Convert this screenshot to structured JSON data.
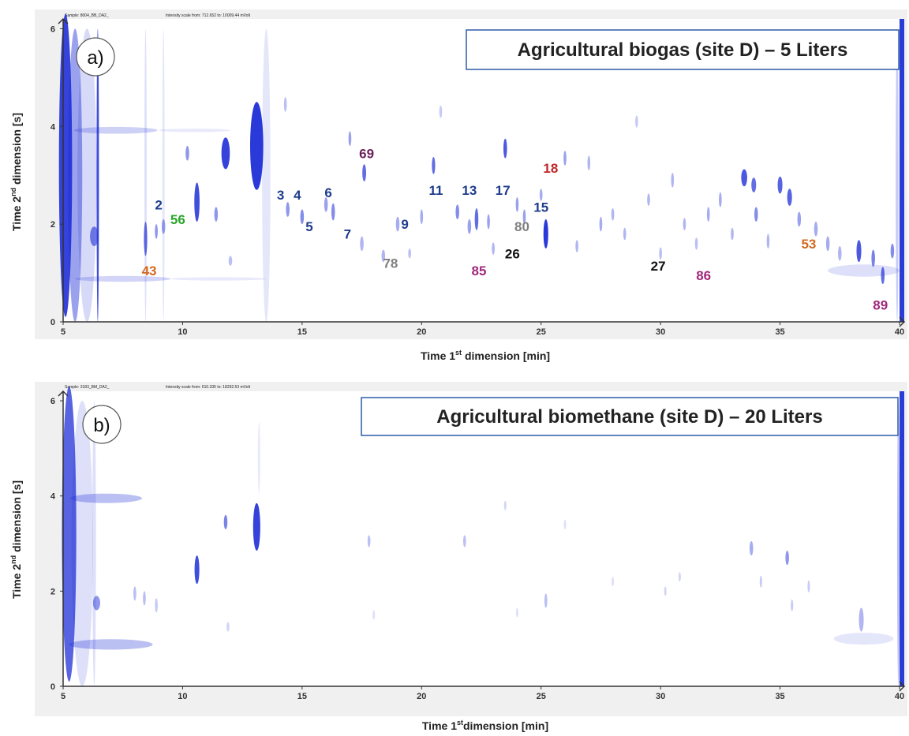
{
  "chart_data": [
    {
      "type": "scatter",
      "panel_label": "a)",
      "title": "Agricultural biogas (site D) – 5 Liters",
      "header": {
        "sample": "Sample: 8004_BB_DA2_",
        "intensity": "Intensity scale from: 712.652 to: 10009.44 mVolt"
      },
      "xlabel_parts": {
        "pre": "Time 1",
        "sup": "st",
        "post": " dimension [min]"
      },
      "ylabel_parts": {
        "pre": "Time 2",
        "sup": "nd",
        "post": " dimension [s]"
      },
      "xlim": [
        5,
        40
      ],
      "ylim": [
        0,
        6.2
      ],
      "xticks": [
        "5",
        "10",
        "15",
        "20",
        "25",
        "30",
        "35",
        "40"
      ],
      "yticks": [
        "0",
        "2",
        "4",
        "6"
      ],
      "grid": false,
      "colors": {
        "peak": "#1f2fd6",
        "frame": "#1f3c9c"
      },
      "annotations": [
        {
          "text": "2",
          "x": 9.0,
          "y": 2.4,
          "color": "#1f3c8c"
        },
        {
          "text": "56",
          "x": 9.8,
          "y": 2.1,
          "color": "#2aa52a"
        },
        {
          "text": "43",
          "x": 8.6,
          "y": 1.05,
          "color": "#d2691e"
        },
        {
          "text": "3",
          "x": 14.1,
          "y": 2.6,
          "color": "#1f3c8c"
        },
        {
          "text": "4",
          "x": 14.8,
          "y": 2.6,
          "color": "#1f3c8c"
        },
        {
          "text": "6",
          "x": 16.1,
          "y": 2.65,
          "color": "#1f3c8c"
        },
        {
          "text": "5",
          "x": 15.3,
          "y": 1.95,
          "color": "#1f3c8c"
        },
        {
          "text": "7",
          "x": 16.9,
          "y": 1.8,
          "color": "#1f3c8c"
        },
        {
          "text": "69",
          "x": 17.7,
          "y": 3.45,
          "color": "#6b1f5a"
        },
        {
          "text": "78",
          "x": 18.7,
          "y": 1.2,
          "color": "#7f7f7f"
        },
        {
          "text": "9",
          "x": 19.3,
          "y": 2.0,
          "color": "#1f3c8c"
        },
        {
          "text": "11",
          "x": 20.6,
          "y": 2.7,
          "color": "#1f3c8c"
        },
        {
          "text": "13",
          "x": 22.0,
          "y": 2.7,
          "color": "#1f3c8c"
        },
        {
          "text": "85",
          "x": 22.4,
          "y": 1.05,
          "color": "#a0287d"
        },
        {
          "text": "17",
          "x": 23.4,
          "y": 2.7,
          "color": "#1f3c8c"
        },
        {
          "text": "80",
          "x": 24.2,
          "y": 1.95,
          "color": "#7f7f7f"
        },
        {
          "text": "26",
          "x": 23.8,
          "y": 1.4,
          "color": "#111111"
        },
        {
          "text": "15",
          "x": 25.0,
          "y": 2.35,
          "color": "#1f3c8c"
        },
        {
          "text": "18",
          "x": 25.4,
          "y": 3.15,
          "color": "#c0262a"
        },
        {
          "text": "27",
          "x": 29.9,
          "y": 1.15,
          "color": "#111111"
        },
        {
          "text": "86",
          "x": 31.8,
          "y": 0.95,
          "color": "#a0287d"
        },
        {
          "text": "53",
          "x": 36.2,
          "y": 1.6,
          "color": "#d2691e"
        },
        {
          "text": "89",
          "x": 39.2,
          "y": 0.35,
          "color": "#a0287d"
        }
      ],
      "peaks": [
        {
          "x": 5.1,
          "y": 3.2,
          "w": 0.55,
          "h": 6.2,
          "o": 0.9
        },
        {
          "x": 5.5,
          "y": 3.0,
          "w": 0.6,
          "h": 6.0,
          "o": 0.45
        },
        {
          "x": 6.0,
          "y": 3.0,
          "w": 0.8,
          "h": 6.0,
          "o": 0.18
        },
        {
          "x": 6.45,
          "y": 3.0,
          "w": 0.08,
          "h": 6.0,
          "o": 0.85
        },
        {
          "x": 7.2,
          "y": 3.92,
          "w": 3.5,
          "h": 0.14,
          "o": 0.22
        },
        {
          "x": 10.5,
          "y": 3.92,
          "w": 3.0,
          "h": 0.07,
          "o": 0.1
        },
        {
          "x": 7.5,
          "y": 0.88,
          "w": 4.0,
          "h": 0.12,
          "o": 0.2
        },
        {
          "x": 11.5,
          "y": 0.88,
          "w": 4.0,
          "h": 0.07,
          "o": 0.1
        },
        {
          "x": 6.3,
          "y": 1.75,
          "w": 0.35,
          "h": 0.4,
          "o": 0.6
        },
        {
          "x": 8.45,
          "y": 1.7,
          "w": 0.14,
          "h": 0.7,
          "o": 0.7
        },
        {
          "x": 8.45,
          "y": 3.0,
          "w": 0.08,
          "h": 6.0,
          "o": 0.15
        },
        {
          "x": 8.9,
          "y": 1.85,
          "w": 0.12,
          "h": 0.3,
          "o": 0.5
        },
        {
          "x": 9.2,
          "y": 3.0,
          "w": 0.08,
          "h": 6.0,
          "o": 0.12
        },
        {
          "x": 9.2,
          "y": 1.95,
          "w": 0.15,
          "h": 0.3,
          "o": 0.45
        },
        {
          "x": 10.2,
          "y": 3.45,
          "w": 0.15,
          "h": 0.3,
          "o": 0.5
        },
        {
          "x": 10.6,
          "y": 2.45,
          "w": 0.22,
          "h": 0.8,
          "o": 0.85
        },
        {
          "x": 11.4,
          "y": 2.2,
          "w": 0.15,
          "h": 0.3,
          "o": 0.5
        },
        {
          "x": 11.8,
          "y": 3.45,
          "w": 0.35,
          "h": 0.65,
          "o": 0.9
        },
        {
          "x": 12.0,
          "y": 1.25,
          "w": 0.15,
          "h": 0.2,
          "o": 0.3
        },
        {
          "x": 13.1,
          "y": 3.6,
          "w": 0.55,
          "h": 1.8,
          "o": 0.95
        },
        {
          "x": 13.5,
          "y": 3.0,
          "w": 0.35,
          "h": 6.0,
          "o": 0.12
        },
        {
          "x": 14.3,
          "y": 4.45,
          "w": 0.12,
          "h": 0.3,
          "o": 0.3
        },
        {
          "x": 14.4,
          "y": 2.3,
          "w": 0.15,
          "h": 0.3,
          "o": 0.5
        },
        {
          "x": 15.0,
          "y": 2.15,
          "w": 0.15,
          "h": 0.3,
          "o": 0.55
        },
        {
          "x": 16.0,
          "y": 2.4,
          "w": 0.15,
          "h": 0.3,
          "o": 0.45
        },
        {
          "x": 16.3,
          "y": 2.25,
          "w": 0.15,
          "h": 0.35,
          "o": 0.55
        },
        {
          "x": 17.0,
          "y": 3.75,
          "w": 0.12,
          "h": 0.3,
          "o": 0.45
        },
        {
          "x": 17.6,
          "y": 3.05,
          "w": 0.16,
          "h": 0.35,
          "o": 0.7
        },
        {
          "x": 17.5,
          "y": 1.6,
          "w": 0.15,
          "h": 0.3,
          "o": 0.35
        },
        {
          "x": 18.4,
          "y": 1.35,
          "w": 0.15,
          "h": 0.25,
          "o": 0.35
        },
        {
          "x": 19.0,
          "y": 2.0,
          "w": 0.15,
          "h": 0.3,
          "o": 0.4
        },
        {
          "x": 19.5,
          "y": 1.4,
          "w": 0.12,
          "h": 0.2,
          "o": 0.3
        },
        {
          "x": 20.0,
          "y": 2.15,
          "w": 0.12,
          "h": 0.3,
          "o": 0.4
        },
        {
          "x": 20.5,
          "y": 3.2,
          "w": 0.14,
          "h": 0.35,
          "o": 0.7
        },
        {
          "x": 20.8,
          "y": 4.3,
          "w": 0.12,
          "h": 0.25,
          "o": 0.25
        },
        {
          "x": 21.5,
          "y": 2.25,
          "w": 0.15,
          "h": 0.3,
          "o": 0.55
        },
        {
          "x": 22.0,
          "y": 1.95,
          "w": 0.15,
          "h": 0.3,
          "o": 0.45
        },
        {
          "x": 22.3,
          "y": 2.1,
          "w": 0.15,
          "h": 0.45,
          "o": 0.7
        },
        {
          "x": 22.8,
          "y": 2.05,
          "w": 0.12,
          "h": 0.3,
          "o": 0.45
        },
        {
          "x": 23.0,
          "y": 1.5,
          "w": 0.12,
          "h": 0.25,
          "o": 0.35
        },
        {
          "x": 23.5,
          "y": 3.55,
          "w": 0.15,
          "h": 0.4,
          "o": 0.8
        },
        {
          "x": 24.0,
          "y": 2.4,
          "w": 0.12,
          "h": 0.3,
          "o": 0.45
        },
        {
          "x": 24.3,
          "y": 2.15,
          "w": 0.12,
          "h": 0.3,
          "o": 0.45
        },
        {
          "x": 25.2,
          "y": 1.8,
          "w": 0.2,
          "h": 0.6,
          "o": 0.95
        },
        {
          "x": 25.0,
          "y": 2.6,
          "w": 0.12,
          "h": 0.25,
          "o": 0.4
        },
        {
          "x": 26.0,
          "y": 3.35,
          "w": 0.12,
          "h": 0.3,
          "o": 0.45
        },
        {
          "x": 26.5,
          "y": 1.55,
          "w": 0.12,
          "h": 0.25,
          "o": 0.35
        },
        {
          "x": 27.0,
          "y": 3.25,
          "w": 0.12,
          "h": 0.3,
          "o": 0.35
        },
        {
          "x": 27.5,
          "y": 2.0,
          "w": 0.12,
          "h": 0.3,
          "o": 0.4
        },
        {
          "x": 28.0,
          "y": 2.2,
          "w": 0.12,
          "h": 0.25,
          "o": 0.35
        },
        {
          "x": 28.5,
          "y": 1.8,
          "w": 0.12,
          "h": 0.25,
          "o": 0.35
        },
        {
          "x": 29.0,
          "y": 4.1,
          "w": 0.12,
          "h": 0.25,
          "o": 0.25
        },
        {
          "x": 29.5,
          "y": 2.5,
          "w": 0.12,
          "h": 0.25,
          "o": 0.35
        },
        {
          "x": 30.0,
          "y": 1.4,
          "w": 0.12,
          "h": 0.25,
          "o": 0.3
        },
        {
          "x": 30.5,
          "y": 2.9,
          "w": 0.12,
          "h": 0.3,
          "o": 0.35
        },
        {
          "x": 31.0,
          "y": 2.0,
          "w": 0.12,
          "h": 0.25,
          "o": 0.35
        },
        {
          "x": 31.5,
          "y": 1.6,
          "w": 0.12,
          "h": 0.25,
          "o": 0.3
        },
        {
          "x": 32.0,
          "y": 2.2,
          "w": 0.12,
          "h": 0.3,
          "o": 0.4
        },
        {
          "x": 32.5,
          "y": 2.5,
          "w": 0.12,
          "h": 0.3,
          "o": 0.4
        },
        {
          "x": 33.0,
          "y": 1.8,
          "w": 0.12,
          "h": 0.25,
          "o": 0.35
        },
        {
          "x": 33.5,
          "y": 2.95,
          "w": 0.25,
          "h": 0.35,
          "o": 0.8
        },
        {
          "x": 33.9,
          "y": 2.8,
          "w": 0.2,
          "h": 0.3,
          "o": 0.7
        },
        {
          "x": 34.0,
          "y": 2.2,
          "w": 0.15,
          "h": 0.3,
          "o": 0.55
        },
        {
          "x": 34.5,
          "y": 1.65,
          "w": 0.12,
          "h": 0.3,
          "o": 0.35
        },
        {
          "x": 35.0,
          "y": 2.8,
          "w": 0.2,
          "h": 0.35,
          "o": 0.75
        },
        {
          "x": 35.4,
          "y": 2.55,
          "w": 0.2,
          "h": 0.35,
          "o": 0.75
        },
        {
          "x": 35.8,
          "y": 2.1,
          "w": 0.15,
          "h": 0.3,
          "o": 0.45
        },
        {
          "x": 36.5,
          "y": 1.9,
          "w": 0.15,
          "h": 0.3,
          "o": 0.4
        },
        {
          "x": 37.0,
          "y": 1.6,
          "w": 0.15,
          "h": 0.3,
          "o": 0.4
        },
        {
          "x": 37.5,
          "y": 1.4,
          "w": 0.15,
          "h": 0.3,
          "o": 0.35
        },
        {
          "x": 38.3,
          "y": 1.45,
          "w": 0.2,
          "h": 0.45,
          "o": 0.8
        },
        {
          "x": 38.9,
          "y": 1.3,
          "w": 0.15,
          "h": 0.35,
          "o": 0.6
        },
        {
          "x": 39.3,
          "y": 0.95,
          "w": 0.15,
          "h": 0.35,
          "o": 0.7
        },
        {
          "x": 39.7,
          "y": 1.45,
          "w": 0.15,
          "h": 0.3,
          "o": 0.55
        },
        {
          "x": 38.5,
          "y": 1.05,
          "w": 3.0,
          "h": 0.25,
          "o": 0.15
        },
        {
          "x": 39.9,
          "y": 3.0,
          "w": 0.12,
          "h": 6.0,
          "o": 0.25
        }
      ]
    },
    {
      "type": "scatter",
      "panel_label": "b)",
      "title": "Agricultural biomethane (site D) – 20 Liters",
      "header": {
        "sample": "Sample: 3183_BM_DA2_",
        "intensity": "Intensity scale from: 610.335 to: 18292.53 mVolt"
      },
      "xlabel_parts": {
        "pre": "Time 1",
        "sup": "st",
        "post": "dimension [min]"
      },
      "ylabel_parts": {
        "pre": "Time 2",
        "sup": "nd",
        "post": " dimension [s]"
      },
      "xlim": [
        5,
        40
      ],
      "ylim": [
        0,
        6.2
      ],
      "xticks": [
        "5",
        "10",
        "15",
        "20",
        "25",
        "30",
        "35",
        "40"
      ],
      "yticks": [
        "0",
        "2",
        "4",
        "6"
      ],
      "grid": false,
      "colors": {
        "peak": "#1f2fd6",
        "frame": "#1f3c9c"
      },
      "annotations": [],
      "peaks": [
        {
          "x": 5.25,
          "y": 3.2,
          "w": 0.6,
          "h": 6.2,
          "o": 0.75
        },
        {
          "x": 5.8,
          "y": 3.0,
          "w": 0.9,
          "h": 6.0,
          "o": 0.15
        },
        {
          "x": 6.3,
          "y": 3.0,
          "w": 0.15,
          "h": 6.0,
          "o": 0.15
        },
        {
          "x": 6.8,
          "y": 3.95,
          "w": 3.0,
          "h": 0.2,
          "o": 0.3
        },
        {
          "x": 7.0,
          "y": 0.88,
          "w": 3.5,
          "h": 0.22,
          "o": 0.3
        },
        {
          "x": 6.4,
          "y": 1.75,
          "w": 0.3,
          "h": 0.3,
          "o": 0.5
        },
        {
          "x": 8.0,
          "y": 1.95,
          "w": 0.12,
          "h": 0.3,
          "o": 0.3
        },
        {
          "x": 8.4,
          "y": 1.85,
          "w": 0.12,
          "h": 0.3,
          "o": 0.3
        },
        {
          "x": 8.9,
          "y": 1.7,
          "w": 0.12,
          "h": 0.3,
          "o": 0.25
        },
        {
          "x": 10.6,
          "y": 2.45,
          "w": 0.2,
          "h": 0.6,
          "o": 0.85
        },
        {
          "x": 11.8,
          "y": 3.45,
          "w": 0.15,
          "h": 0.3,
          "o": 0.6
        },
        {
          "x": 11.9,
          "y": 1.25,
          "w": 0.12,
          "h": 0.2,
          "o": 0.2
        },
        {
          "x": 13.1,
          "y": 3.35,
          "w": 0.3,
          "h": 1.0,
          "o": 0.9
        },
        {
          "x": 13.2,
          "y": 4.8,
          "w": 0.08,
          "h": 1.5,
          "o": 0.1
        },
        {
          "x": 17.8,
          "y": 3.05,
          "w": 0.12,
          "h": 0.25,
          "o": 0.3
        },
        {
          "x": 18.0,
          "y": 1.5,
          "w": 0.1,
          "h": 0.2,
          "o": 0.15
        },
        {
          "x": 21.8,
          "y": 3.05,
          "w": 0.12,
          "h": 0.25,
          "o": 0.3
        },
        {
          "x": 23.5,
          "y": 3.8,
          "w": 0.1,
          "h": 0.2,
          "o": 0.2
        },
        {
          "x": 24.0,
          "y": 1.55,
          "w": 0.1,
          "h": 0.2,
          "o": 0.15
        },
        {
          "x": 25.2,
          "y": 1.8,
          "w": 0.12,
          "h": 0.3,
          "o": 0.3
        },
        {
          "x": 26.0,
          "y": 3.4,
          "w": 0.1,
          "h": 0.2,
          "o": 0.15
        },
        {
          "x": 28.0,
          "y": 2.2,
          "w": 0.1,
          "h": 0.2,
          "o": 0.15
        },
        {
          "x": 30.2,
          "y": 2.0,
          "w": 0.1,
          "h": 0.2,
          "o": 0.2
        },
        {
          "x": 30.8,
          "y": 2.3,
          "w": 0.1,
          "h": 0.2,
          "o": 0.2
        },
        {
          "x": 33.8,
          "y": 2.9,
          "w": 0.15,
          "h": 0.3,
          "o": 0.4
        },
        {
          "x": 34.2,
          "y": 2.2,
          "w": 0.1,
          "h": 0.25,
          "o": 0.25
        },
        {
          "x": 35.3,
          "y": 2.7,
          "w": 0.15,
          "h": 0.3,
          "o": 0.5
        },
        {
          "x": 35.5,
          "y": 1.7,
          "w": 0.1,
          "h": 0.25,
          "o": 0.25
        },
        {
          "x": 36.2,
          "y": 2.1,
          "w": 0.1,
          "h": 0.25,
          "o": 0.25
        },
        {
          "x": 38.4,
          "y": 1.4,
          "w": 0.2,
          "h": 0.5,
          "o": 0.35
        },
        {
          "x": 38.5,
          "y": 1.0,
          "w": 2.5,
          "h": 0.25,
          "o": 0.12
        },
        {
          "x": 39.95,
          "y": 3.0,
          "w": 0.1,
          "h": 6.0,
          "o": 0.3
        }
      ]
    }
  ]
}
